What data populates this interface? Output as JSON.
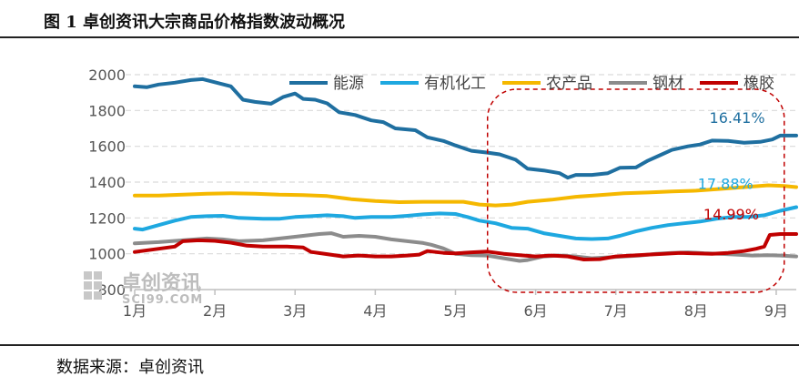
{
  "header": {
    "title": "图 1  卓创资讯大宗商品价格指数波动概况"
  },
  "footer": {
    "source": "数据来源：卓创资讯"
  },
  "watermark": {
    "name": "卓创资讯",
    "site": "SCI99.COM"
  },
  "chart_data": {
    "type": "line",
    "title": "图 1  卓创资讯大宗商品价格指数波动概况",
    "xlabel": "",
    "ylabel": "",
    "ylim": [
      800,
      2000
    ],
    "yticks": [
      800,
      1000,
      1200,
      1400,
      1600,
      1800,
      2000
    ],
    "xlim": [
      1,
      9.25
    ],
    "xticks": [
      {
        "value": 1,
        "label": "1月"
      },
      {
        "value": 2,
        "label": "2月"
      },
      {
        "value": 3,
        "label": "3月"
      },
      {
        "value": 4,
        "label": "4月"
      },
      {
        "value": 5,
        "label": "5月"
      },
      {
        "value": 6,
        "label": "6月"
      },
      {
        "value": 7,
        "label": "7月"
      },
      {
        "value": 8,
        "label": "8月"
      },
      {
        "value": 9,
        "label": "9月"
      }
    ],
    "grid": "horizontal-dashed",
    "legend_position": "top-right",
    "series": [
      {
        "name": "能源",
        "color": "#1f6fa0",
        "points": [
          [
            1,
            1935
          ],
          [
            1.15,
            1930
          ],
          [
            1.3,
            1945
          ],
          [
            1.5,
            1955
          ],
          [
            1.7,
            1970
          ],
          [
            1.85,
            1975
          ],
          [
            2.0,
            1958
          ],
          [
            2.2,
            1935
          ],
          [
            2.35,
            1860
          ],
          [
            2.5,
            1848
          ],
          [
            2.7,
            1838
          ],
          [
            2.85,
            1875
          ],
          [
            3.0,
            1895
          ],
          [
            3.1,
            1865
          ],
          [
            3.25,
            1860
          ],
          [
            3.4,
            1840
          ],
          [
            3.55,
            1790
          ],
          [
            3.75,
            1775
          ],
          [
            3.95,
            1745
          ],
          [
            4.1,
            1735
          ],
          [
            4.25,
            1700
          ],
          [
            4.5,
            1690
          ],
          [
            4.65,
            1650
          ],
          [
            4.85,
            1630
          ],
          [
            5.0,
            1605
          ],
          [
            5.2,
            1575
          ],
          [
            5.4,
            1565
          ],
          [
            5.55,
            1555
          ],
          [
            5.75,
            1525
          ],
          [
            5.9,
            1475
          ],
          [
            6.1,
            1465
          ],
          [
            6.3,
            1450
          ],
          [
            6.4,
            1425
          ],
          [
            6.5,
            1440
          ],
          [
            6.7,
            1440
          ],
          [
            6.9,
            1450
          ],
          [
            7.05,
            1480
          ],
          [
            7.25,
            1482
          ],
          [
            7.4,
            1520
          ],
          [
            7.55,
            1550
          ],
          [
            7.7,
            1580
          ],
          [
            7.9,
            1600
          ],
          [
            8.05,
            1610
          ],
          [
            8.2,
            1632
          ],
          [
            8.4,
            1630
          ],
          [
            8.6,
            1620
          ],
          [
            8.8,
            1625
          ],
          [
            8.95,
            1638
          ],
          [
            9.05,
            1660
          ],
          [
            9.25,
            1660
          ]
        ]
      },
      {
        "name": "有机化工",
        "color": "#1ea8e0",
        "points": [
          [
            1,
            1140
          ],
          [
            1.1,
            1135
          ],
          [
            1.3,
            1160
          ],
          [
            1.5,
            1185
          ],
          [
            1.7,
            1205
          ],
          [
            1.9,
            1210
          ],
          [
            2.1,
            1212
          ],
          [
            2.3,
            1200
          ],
          [
            2.6,
            1195
          ],
          [
            2.8,
            1195
          ],
          [
            3.0,
            1205
          ],
          [
            3.2,
            1210
          ],
          [
            3.4,
            1215
          ],
          [
            3.6,
            1210
          ],
          [
            3.75,
            1200
          ],
          [
            3.95,
            1205
          ],
          [
            4.2,
            1205
          ],
          [
            4.4,
            1212
          ],
          [
            4.6,
            1220
          ],
          [
            4.8,
            1225
          ],
          [
            5.0,
            1222
          ],
          [
            5.15,
            1205
          ],
          [
            5.3,
            1185
          ],
          [
            5.5,
            1170
          ],
          [
            5.7,
            1145
          ],
          [
            5.9,
            1140
          ],
          [
            6.1,
            1115
          ],
          [
            6.3,
            1100
          ],
          [
            6.5,
            1085
          ],
          [
            6.7,
            1082
          ],
          [
            6.9,
            1085
          ],
          [
            7.05,
            1100
          ],
          [
            7.25,
            1125
          ],
          [
            7.45,
            1145
          ],
          [
            7.65,
            1160
          ],
          [
            7.85,
            1170
          ],
          [
            8.05,
            1180
          ],
          [
            8.25,
            1195
          ],
          [
            8.45,
            1205
          ],
          [
            8.65,
            1205
          ],
          [
            8.85,
            1215
          ],
          [
            9.05,
            1240
          ],
          [
            9.25,
            1260
          ]
        ]
      },
      {
        "name": "农产品",
        "color": "#f5b800",
        "points": [
          [
            1,
            1325
          ],
          [
            1.3,
            1325
          ],
          [
            1.6,
            1330
          ],
          [
            1.9,
            1335
          ],
          [
            2.2,
            1338
          ],
          [
            2.5,
            1335
          ],
          [
            2.8,
            1330
          ],
          [
            3.1,
            1328
          ],
          [
            3.4,
            1322
          ],
          [
            3.7,
            1305
          ],
          [
            4.0,
            1295
          ],
          [
            4.3,
            1288
          ],
          [
            4.6,
            1290
          ],
          [
            4.9,
            1290
          ],
          [
            5.1,
            1290
          ],
          [
            5.3,
            1275
          ],
          [
            5.5,
            1270
          ],
          [
            5.7,
            1275
          ],
          [
            5.9,
            1290
          ],
          [
            6.2,
            1302
          ],
          [
            6.5,
            1318
          ],
          [
            6.8,
            1328
          ],
          [
            7.1,
            1338
          ],
          [
            7.4,
            1342
          ],
          [
            7.7,
            1348
          ],
          [
            8.0,
            1352
          ],
          [
            8.3,
            1362
          ],
          [
            8.6,
            1372
          ],
          [
            8.9,
            1382
          ],
          [
            9.1,
            1378
          ],
          [
            9.25,
            1372
          ]
        ]
      },
      {
        "name": "钢材",
        "color": "#8c8c8c",
        "points": [
          [
            1,
            1058
          ],
          [
            1.3,
            1065
          ],
          [
            1.6,
            1075
          ],
          [
            1.9,
            1085
          ],
          [
            2.1,
            1080
          ],
          [
            2.3,
            1070
          ],
          [
            2.6,
            1075
          ],
          [
            2.9,
            1090
          ],
          [
            3.1,
            1100
          ],
          [
            3.3,
            1110
          ],
          [
            3.45,
            1115
          ],
          [
            3.6,
            1095
          ],
          [
            3.8,
            1100
          ],
          [
            4.0,
            1095
          ],
          [
            4.2,
            1080
          ],
          [
            4.4,
            1070
          ],
          [
            4.6,
            1060
          ],
          [
            4.7,
            1050
          ],
          [
            4.85,
            1030
          ],
          [
            5.0,
            1000
          ],
          [
            5.2,
            992
          ],
          [
            5.4,
            990
          ],
          [
            5.6,
            975
          ],
          [
            5.8,
            960
          ],
          [
            5.9,
            965
          ],
          [
            6.1,
            985
          ],
          [
            6.3,
            990
          ],
          [
            6.5,
            985
          ],
          [
            6.7,
            975
          ],
          [
            6.9,
            980
          ],
          [
            7.1,
            985
          ],
          [
            7.3,
            990
          ],
          [
            7.5,
            1000
          ],
          [
            7.7,
            1005
          ],
          [
            7.9,
            1008
          ],
          [
            8.1,
            1003
          ],
          [
            8.3,
            1000
          ],
          [
            8.5,
            995
          ],
          [
            8.7,
            990
          ],
          [
            8.9,
            992
          ],
          [
            9.05,
            990
          ],
          [
            9.25,
            985
          ]
        ]
      },
      {
        "name": "橡胶",
        "color": "#c00000",
        "points": [
          [
            1,
            1010
          ],
          [
            1.3,
            1028
          ],
          [
            1.5,
            1040
          ],
          [
            1.6,
            1070
          ],
          [
            1.8,
            1075
          ],
          [
            2.0,
            1072
          ],
          [
            2.2,
            1062
          ],
          [
            2.4,
            1045
          ],
          [
            2.6,
            1040
          ],
          [
            2.9,
            1040
          ],
          [
            3.1,
            1035
          ],
          [
            3.2,
            1010
          ],
          [
            3.4,
            998
          ],
          [
            3.6,
            985
          ],
          [
            3.8,
            990
          ],
          [
            4.0,
            985
          ],
          [
            4.2,
            985
          ],
          [
            4.4,
            990
          ],
          [
            4.55,
            995
          ],
          [
            4.65,
            1015
          ],
          [
            4.85,
            1005
          ],
          [
            5.0,
            1002
          ],
          [
            5.2,
            1008
          ],
          [
            5.4,
            1012
          ],
          [
            5.6,
            1000
          ],
          [
            5.8,
            992
          ],
          [
            6.0,
            985
          ],
          [
            6.2,
            990
          ],
          [
            6.4,
            985
          ],
          [
            6.6,
            968
          ],
          [
            6.8,
            970
          ],
          [
            7.0,
            985
          ],
          [
            7.2,
            990
          ],
          [
            7.4,
            995
          ],
          [
            7.6,
            1000
          ],
          [
            7.8,
            1005
          ],
          [
            8.0,
            1002
          ],
          [
            8.2,
            1000
          ],
          [
            8.4,
            1005
          ],
          [
            8.6,
            1015
          ],
          [
            8.75,
            1028
          ],
          [
            8.85,
            1040
          ],
          [
            8.92,
            1105
          ],
          [
            9.05,
            1110
          ],
          [
            9.25,
            1110
          ]
        ]
      }
    ],
    "annotations": [
      {
        "series": "能源",
        "text": "16.41%"
      },
      {
        "series": "有机化工",
        "text": "17.88%"
      },
      {
        "series": "橡胶",
        "text": "14.99%"
      }
    ],
    "highlight_region": {
      "x_from": 5.4,
      "x_to": 9.1,
      "style": "dashed-rounded-rect",
      "color": "#c00000"
    }
  }
}
